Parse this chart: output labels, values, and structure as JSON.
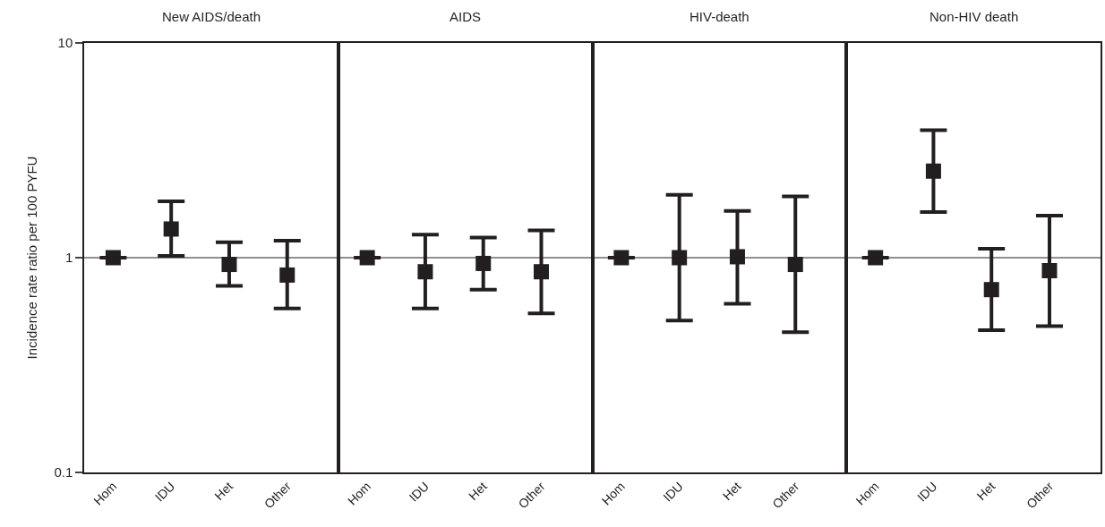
{
  "chart_data": [
    {
      "type": "scatter",
      "title": "New AIDS/death",
      "ylabel": "Incidence rate ratio per 100 PYFU",
      "categories": [
        "Hom",
        "IDU",
        "Het",
        "Other"
      ],
      "values": [
        1,
        1.36,
        0.93,
        0.83
      ],
      "errors": [
        null,
        [
          1.02,
          1.83
        ],
        [
          0.74,
          1.18
        ],
        [
          0.58,
          1.2
        ]
      ],
      "color": "#231f20",
      "marker": "square",
      "log": "y",
      "ylim": [
        0.1,
        10
      ],
      "yticks": [
        0.1,
        1,
        10
      ],
      "ref_lines": [
        {
          "axis": "y",
          "value": 1
        }
      ]
    },
    {
      "type": "scatter",
      "title": "AIDS",
      "categories": [
        "Hom",
        "IDU",
        "Het",
        "Other"
      ],
      "values": [
        1,
        0.86,
        0.94,
        0.86
      ],
      "errors": [
        null,
        [
          0.58,
          1.28
        ],
        [
          0.71,
          1.24
        ],
        [
          0.55,
          1.34
        ]
      ],
      "color": "#231f20",
      "marker": "square",
      "log": "y",
      "ylim": [
        0.1,
        10
      ],
      "yticks": [
        0.1,
        1,
        10
      ],
      "tick_labels": "x",
      "ref_lines": [
        {
          "axis": "y",
          "value": 1
        }
      ]
    },
    {
      "type": "scatter",
      "title": "HIV-death",
      "categories": [
        "Hom",
        "IDU",
        "Het",
        "Other"
      ],
      "values": [
        1,
        1.0,
        1.01,
        0.93
      ],
      "errors": [
        null,
        [
          0.51,
          1.96
        ],
        [
          0.61,
          1.65
        ],
        [
          0.45,
          1.93
        ]
      ],
      "color": "#231f20",
      "marker": "square",
      "log": "y",
      "ylim": [
        0.1,
        10
      ],
      "yticks": [
        0.1,
        1,
        10
      ],
      "tick_labels": "x",
      "ref_lines": [
        {
          "axis": "y",
          "value": 1
        }
      ]
    },
    {
      "type": "scatter",
      "title": "Non-HIV death",
      "categories": [
        "Hom",
        "IDU",
        "Het",
        "Other"
      ],
      "values": [
        1,
        2.53,
        0.71,
        0.87
      ],
      "errors": [
        null,
        [
          1.63,
          3.92
        ],
        [
          0.46,
          1.1
        ],
        [
          0.48,
          1.57
        ]
      ],
      "color": "#231f20",
      "marker": "square",
      "log": "y",
      "ylim": [
        0.1,
        10
      ],
      "yticks": [
        0.1,
        1,
        10
      ],
      "tick_labels": "x",
      "ref_lines": [
        {
          "axis": "y",
          "value": 1
        }
      ]
    }
  ]
}
